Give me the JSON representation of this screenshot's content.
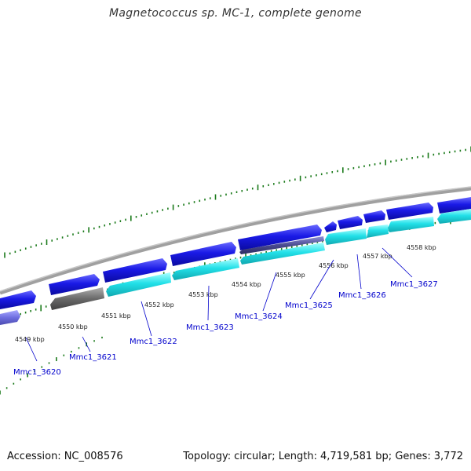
{
  "title": "Magnetococcus sp. MC-1, complete genome",
  "footer": {
    "accession_label": "Accession:",
    "accession": "NC_008576",
    "topology_label": "Topology:",
    "topology": "circular",
    "length_label": "Length:",
    "length": "4,719,581 bp",
    "genes_label": "Genes:",
    "genes": "3,772"
  },
  "colors": {
    "forward_cds": "#1a1ae6",
    "reverse_cds": "#22e0e8",
    "hypothetical": "#6f6fe0",
    "pseudo": "#6a6a6a",
    "backbone": "#8c8c8c",
    "ticks": "#1a7a1a",
    "label": "#0000cc"
  },
  "kbp_labels": [
    "4549 kbp",
    "4550 kbp",
    "4551 kbp",
    "4552 kbp",
    "4553 kbp",
    "4554 kbp",
    "4555 kbp",
    "4556 kbp",
    "4557 kbp",
    "4558 kbp"
  ],
  "genes": [
    "Mmc1_3620",
    "Mmc1_3621",
    "Mmc1_3622",
    "Mmc1_3623",
    "Mmc1_3624",
    "Mmc1_3625",
    "Mmc1_3626",
    "Mmc1_3627"
  ]
}
